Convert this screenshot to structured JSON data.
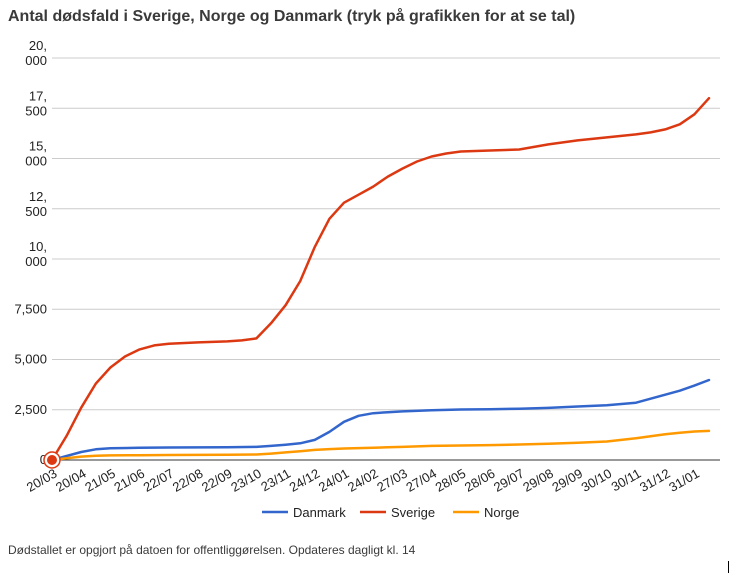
{
  "header": {
    "title": "Antal dødsfald i Sverige, Norge og Danmark (tryk på grafikken for at se tal)"
  },
  "footer": {
    "note": "Dødstallet er opgjort på datoen for offentliggørelsen. Opdateres dagligt kl. 14"
  },
  "colors": {
    "Danmark": "#3366cc",
    "Sverige": "#dc3912",
    "Norge": "#ff9900",
    "grid": "#cccccc",
    "text": "#222222"
  },
  "chart_data": {
    "type": "line",
    "title": "Antal dødsfald i Sverige, Norge og Danmark (tryk på grafikken for at se tal)",
    "xlabel": "",
    "ylabel": "",
    "ylim": [
      0,
      20000
    ],
    "grid": true,
    "legend_position": "bottom",
    "y_ticks": [
      {
        "value": 0,
        "lines": [
          "0"
        ]
      },
      {
        "value": 2500,
        "lines": [
          "2,500"
        ]
      },
      {
        "value": 5000,
        "lines": [
          "5,000"
        ]
      },
      {
        "value": 7500,
        "lines": [
          "7,500"
        ]
      },
      {
        "value": 10000,
        "lines": [
          "10,",
          "000"
        ]
      },
      {
        "value": 12500,
        "lines": [
          "12,",
          "500"
        ]
      },
      {
        "value": 15000,
        "lines": [
          "15,",
          "000"
        ]
      },
      {
        "value": 17500,
        "lines": [
          "17,",
          "500"
        ]
      },
      {
        "value": 20000,
        "lines": [
          "20,",
          "000"
        ]
      }
    ],
    "x_ticks": [
      "20/03",
      "20/04",
      "21/05",
      "21/06",
      "22/07",
      "22/08",
      "22/09",
      "23/10",
      "23/11",
      "24/12",
      "24/01",
      "24/02",
      "27/03",
      "27/04",
      "28/05",
      "28/06",
      "29/07",
      "29/08",
      "29/09",
      "30/10",
      "30/11",
      "31/12",
      "31/01"
    ],
    "series": [
      {
        "name": "Danmark",
        "x": [
          0,
          0.5,
          1,
          1.5,
          2,
          3,
          4,
          5,
          6,
          7,
          7.5,
          8,
          8.5,
          9,
          9.5,
          10,
          10.5,
          11,
          11.5,
          12,
          13,
          14,
          15,
          16,
          17,
          18,
          19,
          20,
          20.5,
          21,
          21.5,
          22,
          22.5
        ],
        "y": [
          0,
          200,
          400,
          530,
          580,
          610,
          620,
          625,
          630,
          650,
          700,
          760,
          830,
          1000,
          1400,
          1900,
          2200,
          2330,
          2380,
          2420,
          2480,
          2510,
          2520,
          2550,
          2590,
          2660,
          2720,
          2850,
          3050,
          3250,
          3450,
          3700,
          3980
        ]
      },
      {
        "name": "Sverige",
        "x": [
          0,
          0.5,
          1,
          1.5,
          2,
          2.5,
          3,
          3.5,
          4,
          5,
          6,
          6.5,
          7,
          7.5,
          8,
          8.5,
          9,
          9.5,
          10,
          10.5,
          11,
          11.5,
          12,
          12.5,
          13,
          13.5,
          14,
          15,
          16,
          17,
          18,
          19,
          20,
          20.5,
          21,
          21.5,
          22,
          22.5
        ],
        "y": [
          0,
          1200,
          2600,
          3800,
          4600,
          5150,
          5500,
          5700,
          5780,
          5850,
          5900,
          5950,
          6050,
          6800,
          7700,
          8900,
          10600,
          12000,
          12800,
          13200,
          13600,
          14100,
          14500,
          14850,
          15100,
          15250,
          15350,
          15400,
          15450,
          15700,
          15900,
          16050,
          16200,
          16300,
          16450,
          16700,
          17200,
          18000
        ]
      },
      {
        "name": "Norge",
        "x": [
          0,
          0.5,
          1,
          1.5,
          2,
          3,
          4,
          5,
          6,
          7,
          7.5,
          8,
          8.5,
          9,
          9.5,
          10,
          10.5,
          11,
          11.5,
          12,
          13,
          14,
          15,
          16,
          17,
          18,
          19,
          20,
          20.5,
          21,
          21.5,
          22,
          22.5
        ],
        "y": [
          0,
          90,
          170,
          210,
          230,
          240,
          250,
          255,
          265,
          275,
          320,
          380,
          440,
          500,
          540,
          570,
          590,
          610,
          630,
          650,
          700,
          720,
          740,
          770,
          810,
          860,
          920,
          1080,
          1180,
          1280,
          1360,
          1420,
          1450
        ]
      }
    ]
  }
}
